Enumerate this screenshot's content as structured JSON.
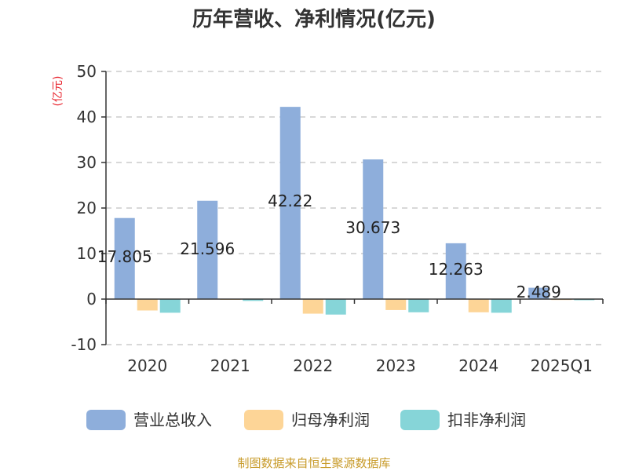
{
  "chart_data": {
    "type": "bar",
    "title": "历年营收、净利情况(亿元)",
    "unit_label": "(亿元)",
    "categories": [
      "2020",
      "2021",
      "2022",
      "2023",
      "2024",
      "2025Q1"
    ],
    "series": [
      {
        "name": "营业总收入",
        "color": "#8eaedb",
        "values": [
          17.805,
          21.596,
          42.22,
          30.673,
          12.263,
          2.489
        ],
        "labels": [
          "17.805",
          "21.596",
          "42.22",
          "30.673",
          "12.263",
          "2.489"
        ]
      },
      {
        "name": "归母净利润",
        "color": "#fdd597",
        "values": [
          -2.5,
          -0.15,
          -3.2,
          -2.4,
          -2.9,
          -0.2
        ]
      },
      {
        "name": "扣非净利润",
        "color": "#86d5d8",
        "values": [
          -3.0,
          -0.4,
          -3.4,
          -2.9,
          -3.0,
          -0.25
        ]
      }
    ],
    "yticks": [
      "-10",
      "0",
      "10",
      "20",
      "30",
      "40",
      "50"
    ],
    "ylim": [
      -10,
      50
    ],
    "grid": true,
    "legend_position": "bottom"
  },
  "source": "制图数据来自恒生聚源数据库"
}
